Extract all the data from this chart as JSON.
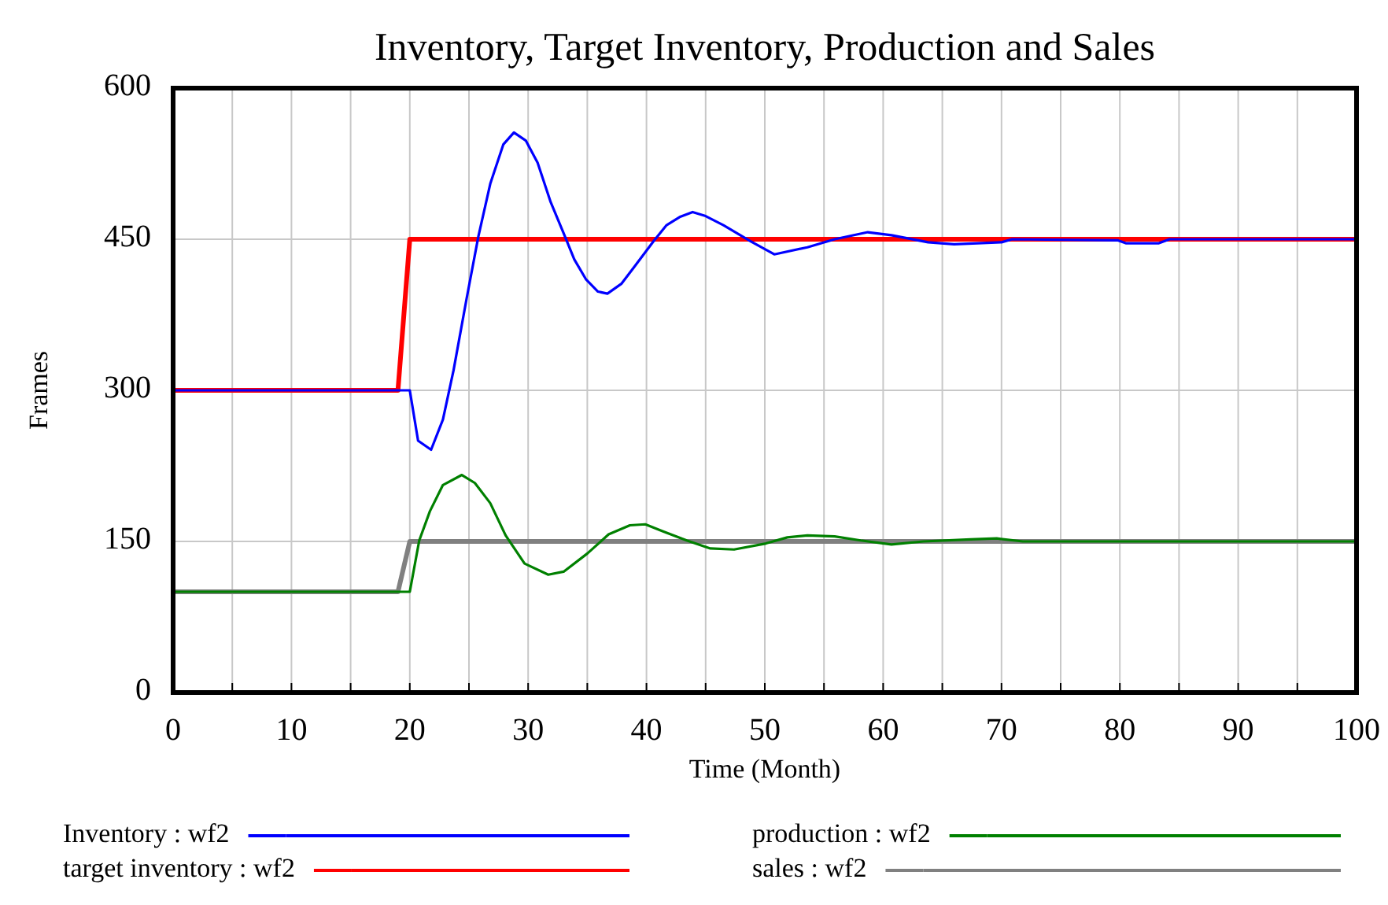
{
  "chart_data": {
    "type": "line",
    "title": "Inventory, Target Inventory, Production and Sales",
    "xlabel": "Time (Month)",
    "ylabel": "Frames",
    "xlim": [
      0,
      100
    ],
    "xticks": [
      0,
      {
        "value": 5,
        "label": null
      },
      10,
      {
        "value": 15,
        "label": null
      },
      20,
      {
        "value": 25,
        "label": null
      },
      30,
      {
        "value": 35,
        "label": null
      },
      40,
      {
        "value": 45,
        "label": null
      },
      50,
      {
        "value": 55,
        "label": null
      },
      60,
      {
        "value": 65,
        "label": null
      },
      70,
      {
        "value": 75,
        "label": null
      },
      80,
      {
        "value": 85,
        "label": null
      },
      90,
      {
        "value": 95,
        "label": null
      },
      100
    ],
    "ylim": [
      0,
      600
    ],
    "yticks": [
      0,
      150,
      300,
      450,
      600
    ],
    "grid": true,
    "legend": "bottom",
    "marker": "none",
    "line_style": "solid",
    "series": [
      {
        "name": "Inventory : wf2",
        "color": "#0000ff",
        "x": [
          0,
          20,
          20.7,
          21.8,
          22.8,
          23.7,
          24.8,
          25.8,
          26.8,
          27.9,
          28.8,
          29.8,
          30.8,
          31.9,
          33,
          33.9,
          34.9,
          35.9,
          36.7,
          37.9,
          39,
          40.6,
          41.7,
          42.8,
          43.9,
          45,
          46.5,
          48.8,
          50.8,
          53.6,
          55.9,
          58.7,
          60.7,
          63.8,
          66,
          70,
          70.9,
          79.8,
          80.5,
          83.3,
          84.2,
          100
        ],
        "values": [
          300,
          300,
          250,
          241,
          271,
          320,
          391,
          453,
          505,
          544,
          556,
          548,
          526,
          487,
          456,
          430,
          410,
          398,
          396,
          406,
          423,
          448,
          464,
          472,
          477,
          473,
          464,
          448,
          435,
          442,
          450,
          457,
          454,
          447,
          445,
          447,
          450,
          449,
          446,
          446,
          450,
          450
        ]
      },
      {
        "name": "target inventory : wf2",
        "color": "#ff0000",
        "x": [
          0,
          19,
          20,
          100
        ],
        "values": [
          300,
          300,
          450,
          450
        ]
      },
      {
        "name": "production : wf2",
        "color": "#008000",
        "x": [
          0,
          20,
          20.8,
          21.7,
          22.8,
          24.4,
          25.5,
          26.8,
          28.1,
          29.7,
          31.7,
          33,
          35,
          36.8,
          38.6,
          39.9,
          41.4,
          43.4,
          45.4,
          47.4,
          50.1,
          51.9,
          53.6,
          55.9,
          58.1,
          60.7,
          63.4,
          67.4,
          69.6,
          71.8,
          100
        ],
        "values": [
          100,
          100,
          151,
          180,
          206,
          216,
          208,
          188,
          156,
          128,
          117,
          120,
          138,
          157,
          166,
          167,
          160,
          151,
          143,
          142,
          148,
          154,
          156,
          155,
          151,
          147,
          150,
          152,
          153,
          150,
          150
        ]
      },
      {
        "name": "sales : wf2",
        "color": "#808080",
        "x": [
          0,
          19,
          20,
          100
        ],
        "values": [
          100,
          100,
          150,
          150
        ]
      }
    ]
  }
}
